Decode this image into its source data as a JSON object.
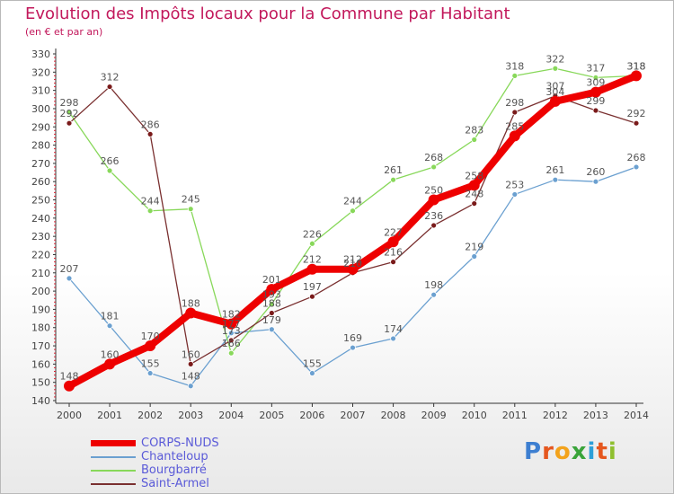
{
  "chart_data": {
    "type": "line",
    "title": "Evolution des Impôts locaux pour la Commune par Habitant",
    "subtitle": "(en € et par an)",
    "xlabel": "",
    "ylabel": "",
    "categories": [
      "2000",
      "2001",
      "2002",
      "2003",
      "2004",
      "2005",
      "2006",
      "2007",
      "2008",
      "2009",
      "2010",
      "2011",
      "2012",
      "2013",
      "2014"
    ],
    "ylim": [
      140,
      330
    ],
    "yticks": [
      140,
      150,
      160,
      170,
      180,
      190,
      200,
      210,
      220,
      230,
      240,
      250,
      260,
      270,
      280,
      290,
      300,
      310,
      320,
      330
    ],
    "grid": false,
    "legend_position": "bottom-left",
    "series": [
      {
        "name": "CORPS-NUDS",
        "color": "#ee0000",
        "point_color": "#ee0000",
        "width": 8,
        "radius": 6,
        "values": [
          148,
          160,
          170,
          188,
          182,
          201,
          212,
          212,
          227,
          250,
          258,
          285,
          304,
          309,
          318
        ]
      },
      {
        "name": "Chanteloup",
        "color": "#6ba0d0",
        "point_color": "#6ba0d0",
        "width": 1.3,
        "radius": 3,
        "values": [
          207,
          181,
          155,
          148,
          177,
          179,
          155,
          169,
          174,
          198,
          219,
          253,
          261,
          260,
          268
        ]
      },
      {
        "name": "Bourgbarré",
        "color": "#88d85a",
        "point_color": "#88d85a",
        "width": 1.3,
        "radius": 3,
        "values": [
          298,
          266,
          244,
          245,
          166,
          193,
          226,
          244,
          261,
          268,
          283,
          318,
          322,
          317,
          318
        ]
      },
      {
        "name": "Saint-Armel",
        "color": "#7a3030",
        "point_color": "#7a1a1a",
        "width": 1.3,
        "radius": 3,
        "values": [
          292,
          312,
          286,
          160,
          173,
          188,
          197,
          210,
          216,
          236,
          248,
          298,
          307,
          299,
          292
        ]
      }
    ]
  },
  "brand": {
    "letters": [
      "P",
      "r",
      "o",
      "x",
      "i",
      "t",
      "i"
    ],
    "colors": [
      "#3d7fd1",
      "#e5571f",
      "#f3a31c",
      "#3aa43a",
      "#2d9fd8",
      "#e5571f",
      "#8fbf2f"
    ]
  }
}
